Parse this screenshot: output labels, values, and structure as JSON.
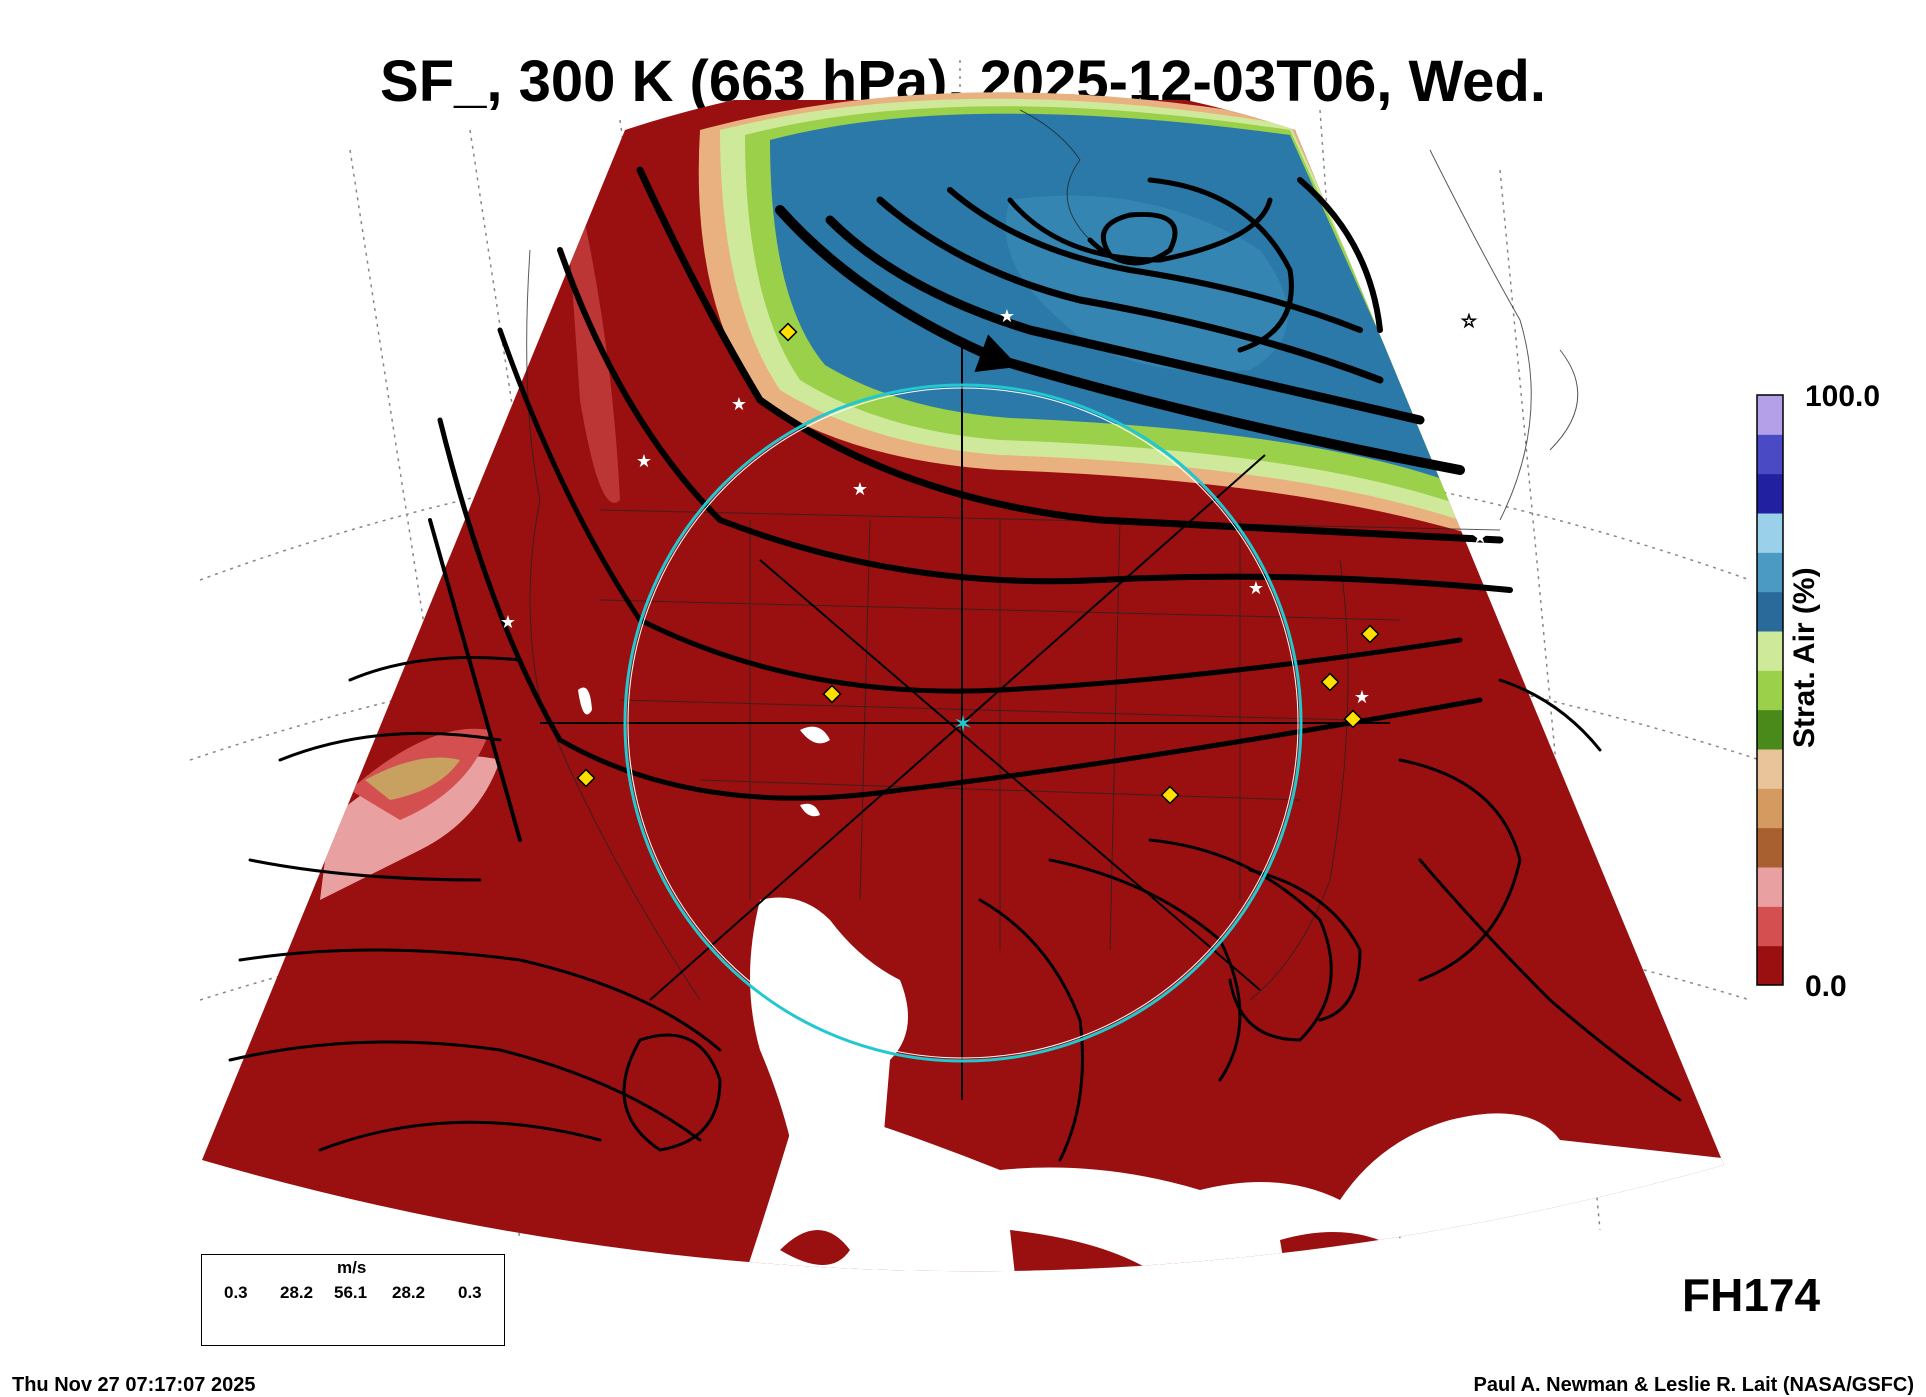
{
  "title": "SF_, 300 K (663 hPa), 2025-12-03T06, Wed.",
  "colorbar": {
    "title": "Strat. Air (%)",
    "max_label": "100.0",
    "min_label": "0.0",
    "colors": [
      "#9a1010",
      "#d45050",
      "#e9a0a0",
      "#a86030",
      "#d49a60",
      "#e9c49a",
      "#4a8a1a",
      "#9ad04a",
      "#cfe99a",
      "#2a6a9a",
      "#4a9ac4",
      "#9ad0e9",
      "#2020a0",
      "#4a4ac4",
      "#b4a0e9"
    ]
  },
  "legend": {
    "unit": "m/s",
    "values": [
      "0.3",
      "28.2",
      "56.1",
      "28.2",
      "0.3"
    ]
  },
  "forecast_hour": "FH174",
  "footer": {
    "timestamp": "Thu Nov 27 07:17:07 2025",
    "credit": "Paul A. Newman & Leslie R. Lait (NASA/GSFC)"
  },
  "map_colors": {
    "low_strat": "#9a1010",
    "high_strat_blue": "#2a79a8",
    "ring": "#20c8d0",
    "marker_diamond": "#ffe000",
    "marker_star": "#ffffff"
  }
}
